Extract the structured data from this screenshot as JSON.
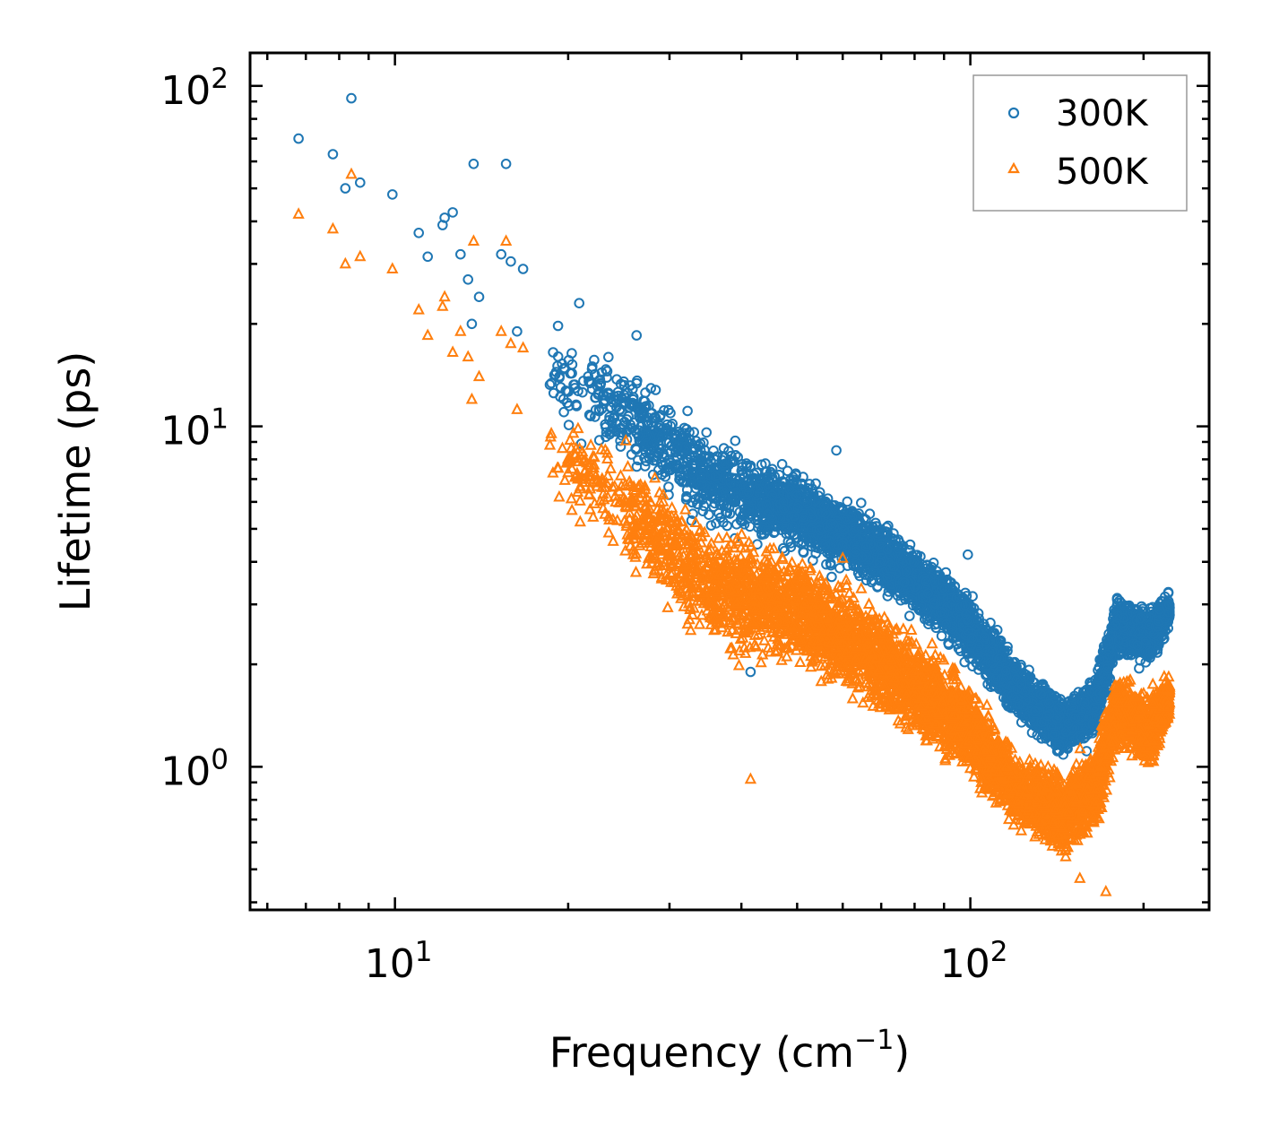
{
  "chart_data": {
    "type": "scatter",
    "xscale": "log",
    "yscale": "log",
    "xlim": [
      5.6,
      260
    ],
    "ylim": [
      0.38,
      125
    ],
    "xlabel": "Frequency (cm",
    "xlabel_sup": "−1",
    "xlabel_end": ")",
    "ylabel": "Lifetime (ps)",
    "x_ticks": [
      {
        "value": 10,
        "base": "10",
        "exp": "1"
      },
      {
        "value": 100,
        "base": "10",
        "exp": "2"
      }
    ],
    "y_ticks": [
      {
        "value": 1,
        "base": "10",
        "exp": "0"
      },
      {
        "value": 10,
        "base": "10",
        "exp": "1"
      },
      {
        "value": 100,
        "base": "10",
        "exp": "2"
      }
    ],
    "legend_position": "top-right",
    "series": [
      {
        "name": "300K",
        "marker": "circle",
        "color": "#1f77b4",
        "sample_points": [
          [
            6.8,
            70
          ],
          [
            7.8,
            63
          ],
          [
            8.2,
            50
          ],
          [
            8.4,
            92
          ],
          [
            8.7,
            52
          ],
          [
            9.9,
            48
          ],
          [
            11.0,
            37
          ],
          [
            11.4,
            31.5
          ],
          [
            12.1,
            39
          ],
          [
            12.2,
            41
          ],
          [
            12.6,
            42.5
          ],
          [
            13.0,
            32
          ],
          [
            13.4,
            27
          ],
          [
            13.7,
            59
          ],
          [
            14.0,
            24
          ],
          [
            13.6,
            20
          ],
          [
            15.3,
            32
          ],
          [
            15.6,
            59
          ],
          [
            15.9,
            30.5
          ],
          [
            16.3,
            19
          ],
          [
            16.7,
            29
          ]
        ],
        "band": [
          {
            "f": 18,
            "center": 15.0,
            "spread": 0.22
          },
          {
            "f": 25,
            "center": 11.0,
            "spread": 0.24
          },
          {
            "f": 35,
            "center": 7.0,
            "spread": 0.22
          },
          {
            "f": 50,
            "center": 5.6,
            "spread": 0.2
          },
          {
            "f": 70,
            "center": 4.2,
            "spread": 0.18
          },
          {
            "f": 95,
            "center": 2.8,
            "spread": 0.17
          },
          {
            "f": 120,
            "center": 1.7,
            "spread": 0.14
          },
          {
            "f": 145,
            "center": 1.3,
            "spread": 0.14
          },
          {
            "f": 165,
            "center": 1.5,
            "spread": 0.15
          },
          {
            "f": 180,
            "center": 2.6,
            "spread": 0.14
          },
          {
            "f": 205,
            "center": 2.4,
            "spread": 0.14
          },
          {
            "f": 222,
            "center": 2.9,
            "spread": 0.1
          }
        ],
        "outliers": [
          [
            20.9,
            23
          ],
          [
            26.3,
            18.5
          ],
          [
            58.5,
            8.5
          ],
          [
            99,
            4.2
          ],
          [
            41.5,
            1.9
          ]
        ]
      },
      {
        "name": "500K",
        "marker": "triangle",
        "color": "#ff7f0e",
        "sample_points": [
          [
            6.8,
            42
          ],
          [
            7.8,
            38
          ],
          [
            8.2,
            30
          ],
          [
            8.4,
            55
          ],
          [
            8.7,
            31.5
          ],
          [
            9.9,
            29
          ],
          [
            11.0,
            22
          ],
          [
            11.4,
            18.5
          ],
          [
            12.1,
            22.5
          ],
          [
            12.2,
            24
          ],
          [
            12.6,
            16.5
          ],
          [
            13.0,
            19
          ],
          [
            13.4,
            16
          ],
          [
            13.7,
            35
          ],
          [
            14.0,
            14
          ],
          [
            13.6,
            12
          ],
          [
            15.3,
            19
          ],
          [
            15.6,
            35
          ],
          [
            15.9,
            17.5
          ],
          [
            16.3,
            11.2
          ],
          [
            16.7,
            17
          ]
        ],
        "band": [
          {
            "f": 18,
            "center": 9.0,
            "spread": 0.22
          },
          {
            "f": 25,
            "center": 6.0,
            "spread": 0.26
          },
          {
            "f": 35,
            "center": 3.4,
            "spread": 0.3
          },
          {
            "f": 50,
            "center": 2.9,
            "spread": 0.3
          },
          {
            "f": 70,
            "center": 2.0,
            "spread": 0.26
          },
          {
            "f": 95,
            "center": 1.4,
            "spread": 0.24
          },
          {
            "f": 120,
            "center": 0.85,
            "spread": 0.18
          },
          {
            "f": 145,
            "center": 0.72,
            "spread": 0.2
          },
          {
            "f": 165,
            "center": 0.85,
            "spread": 0.22
          },
          {
            "f": 180,
            "center": 1.5,
            "spread": 0.18
          },
          {
            "f": 205,
            "center": 1.25,
            "spread": 0.18
          },
          {
            "f": 222,
            "center": 1.6,
            "spread": 0.12
          }
        ],
        "outliers": [
          [
            41.5,
            0.92
          ],
          [
            172,
            0.43
          ],
          [
            155,
            0.47
          ],
          [
            60,
            4.1
          ],
          [
            26.2,
            5.3
          ]
        ]
      }
    ]
  }
}
